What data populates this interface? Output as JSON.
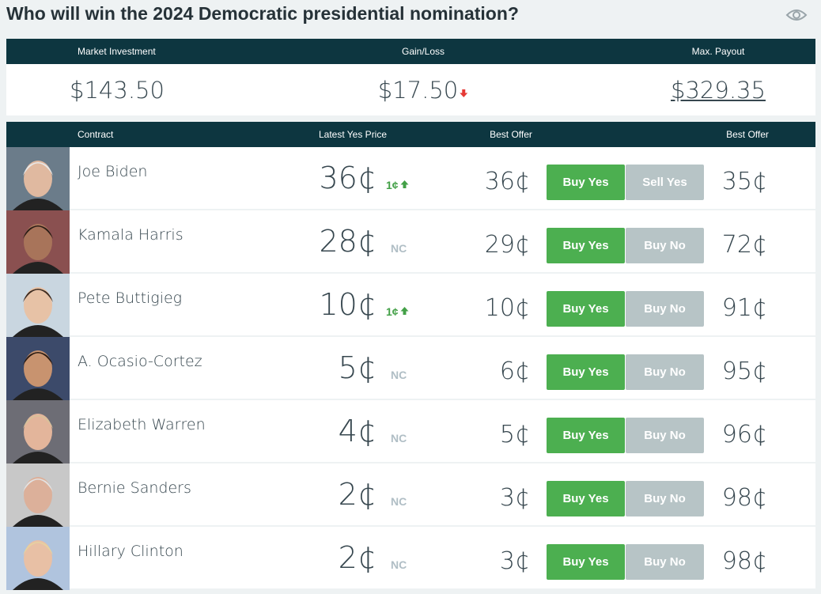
{
  "header": {
    "title": "Who will win the 2024 Democratic presidential nomination?"
  },
  "summary": {
    "items": [
      {
        "label": "Market Investment",
        "value": "$143.50"
      },
      {
        "label": "Gain/Loss",
        "value": "$17.50",
        "trend": "down"
      },
      {
        "label": "Max. Payout",
        "value": "$329.35"
      }
    ]
  },
  "table": {
    "columns": [
      "Contract",
      "Latest Yes Price",
      "Best Offer",
      "Best Offer"
    ],
    "rows": [
      {
        "name": "Joe Biden",
        "price": "36¢",
        "change": {
          "text": "1¢",
          "trend": "up"
        },
        "offer_yes": "36¢",
        "buttons": [
          "Buy Yes",
          "Sell Yes"
        ],
        "offer_no": "35¢"
      },
      {
        "name": "Kamala Harris",
        "price": "28¢",
        "change": {
          "text": "NC"
        },
        "offer_yes": "29¢",
        "buttons": [
          "Buy Yes",
          "Buy No"
        ],
        "offer_no": "72¢"
      },
      {
        "name": "Pete Buttigieg",
        "price": "10¢",
        "change": {
          "text": "1¢",
          "trend": "up"
        },
        "offer_yes": "10¢",
        "buttons": [
          "Buy Yes",
          "Buy No"
        ],
        "offer_no": "91¢"
      },
      {
        "name": "A. Ocasio-Cortez",
        "price": "5¢",
        "change": {
          "text": "NC"
        },
        "offer_yes": "6¢",
        "buttons": [
          "Buy Yes",
          "Buy No"
        ],
        "offer_no": "95¢"
      },
      {
        "name": "Elizabeth Warren",
        "price": "4¢",
        "change": {
          "text": "NC"
        },
        "offer_yes": "5¢",
        "buttons": [
          "Buy Yes",
          "Buy No"
        ],
        "offer_no": "96¢"
      },
      {
        "name": "Bernie Sanders",
        "price": "2¢",
        "change": {
          "text": "NC"
        },
        "offer_yes": "3¢",
        "buttons": [
          "Buy Yes",
          "Buy No"
        ],
        "offer_no": "98¢"
      },
      {
        "name": "Hillary Clinton",
        "price": "2¢",
        "change": {
          "text": "NC"
        },
        "offer_yes": "3¢",
        "buttons": [
          "Buy Yes",
          "Buy No"
        ],
        "offer_no": "98¢"
      }
    ]
  }
}
